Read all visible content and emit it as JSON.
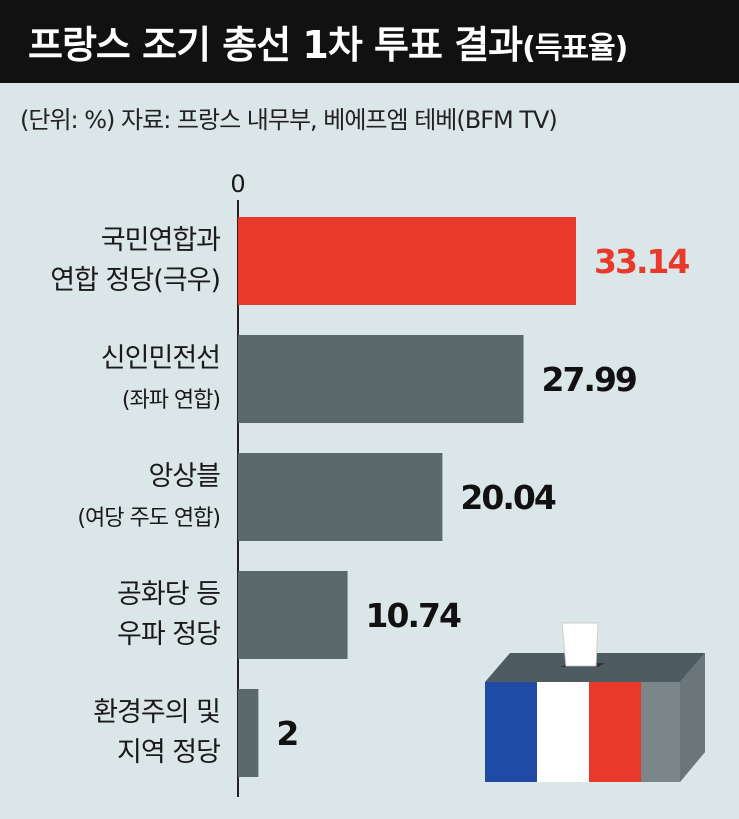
{
  "header": {
    "title": "프랑스 조기 총선 1차 투표 결과",
    "title_suffix": "(득표율)"
  },
  "unit_line": "(단위: %)   자료: 프랑스 내무부, 베에프엠 테베(BFM TV)",
  "chart_data": {
    "type": "bar",
    "orientation": "horizontal",
    "categories": [
      [
        "국민연합과",
        "연합 정당(극우)"
      ],
      [
        "신인민전선",
        "(좌파 연합)"
      ],
      [
        "앙상블",
        "(여당 주도 연합)"
      ],
      [
        "공화당 등",
        "우파 정당"
      ],
      [
        "환경주의 및",
        "지역 정당"
      ]
    ],
    "values": [
      33.14,
      27.99,
      20.04,
      10.74,
      2
    ],
    "value_labels": [
      "33.14",
      "27.99",
      "20.04",
      "10.74",
      "2"
    ],
    "highlight_index": 0,
    "colors": {
      "highlight": "#e8392b",
      "default": "#5b696d",
      "label_default": "#111111"
    },
    "axis_tick": "0",
    "xlim": [
      0,
      40
    ]
  },
  "illustration": {
    "name": "ballot-box-french-flag",
    "flag_colors": [
      "#1f4aa5",
      "#ffffff",
      "#e8392b"
    ]
  }
}
